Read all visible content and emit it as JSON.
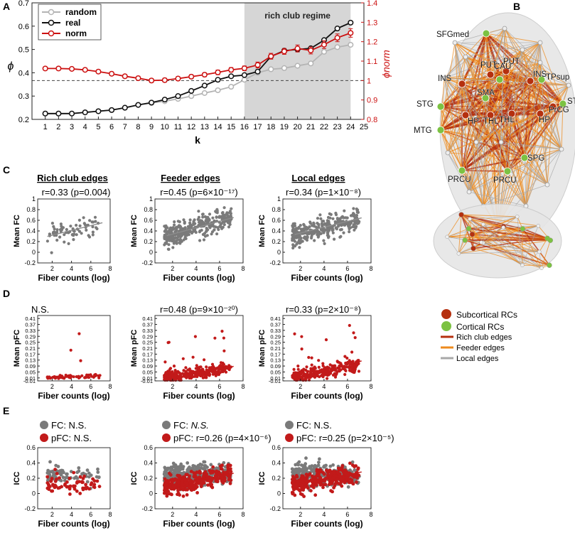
{
  "panels": {
    "a": "A",
    "b": "B",
    "c": "C",
    "d": "D",
    "e": "E"
  },
  "colors": {
    "random": "#b4b4b4",
    "real": "#111111",
    "norm": "#cc1111",
    "shade": "#d6d6d6",
    "dot_gray": "#7a7a7a",
    "dot_red": "#c21a1a",
    "line_gray": "#8c8c8c",
    "line_red": "#c21a1a",
    "subcortical": "#b5300f",
    "cortical": "#7cc242",
    "feeder": "#ee8b1e",
    "local": "#a8a8a8"
  },
  "legend_a": {
    "random": "random",
    "real": "real",
    "norm": "norm"
  },
  "shade_label": "rich club regime",
  "row_titles": {
    "c1": "Rich club edges",
    "c2": "Feeder edges",
    "c3": "Local edges"
  },
  "stats": {
    "c1": "r=0.33 (p=0.004)",
    "c2": "r=0.45 (p=6×10⁻¹⁷)",
    "c3": "r=0.34 (p=1×10⁻⁸)",
    "d1": "N.S.",
    "d2": "r=0.48 (p=9×10⁻²⁰)",
    "d3": "r=0.33 (p=2×10⁻⁸)",
    "e1_fc": "FC: N.S.",
    "e1_pfc": "pFC: N.S.",
    "e2_fc_prefix": "FC: ",
    "e2_fc_ns": "N.S.",
    "e2_pfc": "pFC: r=0.26 (p=4×10⁻⁶)",
    "e3_fc": "FC: N.S.",
    "e3_pfc": "pFC: r=0.25 (p=2×10⁻⁵)"
  },
  "legend_b": {
    "subcortical": "Subcortical RCs",
    "cortical": "Cortical RCs",
    "rich": "Rich club edges",
    "feeder": "Feeder edges",
    "local": "Local edges"
  },
  "brain_labels": [
    "SFGmed",
    "PUT",
    "CAU",
    "PUT",
    "INS",
    "INS",
    "TPsup",
    "SMA",
    "STG",
    "STG",
    "MTG",
    "HP",
    "THL",
    "THL",
    "HP",
    "PrCG",
    "SPG",
    "PRCU",
    "PRCU"
  ],
  "chart_data": [
    {
      "type": "line",
      "id": "A",
      "xlabel": "k",
      "ylabel": "ϕ",
      "ylabel_right": "ϕnorm",
      "xlim": [
        0,
        25
      ],
      "ylim": [
        0.2,
        0.7
      ],
      "ylim_right": [
        0.8,
        1.4
      ],
      "x_ticks": [
        1,
        2,
        3,
        4,
        5,
        6,
        7,
        8,
        9,
        10,
        11,
        12,
        13,
        14,
        15,
        16,
        17,
        18,
        19,
        20,
        21,
        22,
        23,
        24,
        25
      ],
      "y_ticks": [
        "0.2",
        "0.3",
        "0.4",
        "0.5",
        "0.6",
        "0.7"
      ],
      "y_ticks_right": [
        "0.8",
        "0.9",
        "1",
        "1.1",
        "1.2",
        "1.3",
        "1.4"
      ],
      "shaded_region": [
        16,
        24
      ],
      "reference_line_right": 1.0,
      "x": [
        1,
        2,
        3,
        4,
        5,
        6,
        7,
        8,
        9,
        10,
        11,
        12,
        13,
        14,
        15,
        16,
        17,
        18,
        19,
        20,
        21,
        22,
        23,
        24
      ],
      "series": [
        {
          "name": "random",
          "axis": "left",
          "values": [
            0.225,
            0.225,
            0.225,
            0.23,
            0.235,
            0.24,
            0.25,
            0.262,
            0.27,
            0.278,
            0.288,
            0.3,
            0.313,
            0.325,
            0.34,
            0.37,
            0.4,
            0.415,
            0.42,
            0.43,
            0.44,
            0.49,
            0.51,
            0.52
          ]
        },
        {
          "name": "real",
          "axis": "left",
          "values": [
            0.225,
            0.225,
            0.225,
            0.23,
            0.235,
            0.24,
            0.25,
            0.262,
            0.272,
            0.285,
            0.3,
            0.322,
            0.345,
            0.37,
            0.385,
            0.39,
            0.405,
            0.47,
            0.495,
            0.5,
            0.505,
            0.54,
            0.59,
            0.615
          ]
        },
        {
          "name": "norm",
          "axis": "right",
          "values": [
            1.062,
            1.062,
            1.06,
            1.055,
            1.046,
            1.035,
            1.022,
            1.012,
            1.0,
            1.002,
            1.01,
            1.02,
            1.03,
            1.042,
            1.055,
            1.063,
            1.08,
            1.125,
            1.15,
            1.165,
            1.155,
            1.185,
            1.22,
            1.245
          ],
          "errors": [
            0.008,
            0.008,
            0.008,
            0.008,
            0.008,
            0.009,
            0.009,
            0.01,
            0.01,
            0.01,
            0.01,
            0.01,
            0.01,
            0.012,
            0.012,
            0.012,
            0.015,
            0.015,
            0.015,
            0.018,
            0.018,
            0.02,
            0.02,
            0.022
          ]
        }
      ]
    },
    {
      "type": "scatter",
      "id": "C1",
      "title": "Rich club edges",
      "xlabel": "Fiber counts (log)",
      "ylabel": "Mean FC",
      "xlim": [
        0.5,
        8
      ],
      "ylim": [
        -0.2,
        1
      ],
      "x_ticks": [
        "2",
        "4",
        "6",
        "8"
      ],
      "y_ticks": [
        "-0.2",
        "0",
        "0.2",
        "0.4",
        "0.6",
        "0.8",
        "1"
      ],
      "n_points": 70,
      "fit": {
        "intercept": 0.23,
        "slope": 0.045
      },
      "series": [
        {
          "name": "FC",
          "n": 70,
          "x_range": [
            1.5,
            7.0
          ],
          "y_mean_slope": [
            0.23,
            0.045
          ],
          "spread": 0.15
        }
      ]
    },
    {
      "type": "scatter",
      "id": "C2",
      "title": "Feeder edges",
      "xlabel": "Fiber counts (log)",
      "ylabel": "Mean FC",
      "xlim": [
        0.5,
        8
      ],
      "ylim": [
        -0.2,
        1
      ],
      "x_ticks": [
        "2",
        "4",
        "6",
        "8"
      ],
      "y_ticks": [
        "-0.2",
        "0",
        "0.2",
        "0.4",
        "0.6",
        "0.8",
        "1"
      ],
      "n_points": 330,
      "fit": {
        "intercept": 0.22,
        "slope": 0.06
      },
      "series": [
        {
          "name": "FC",
          "n": 330,
          "x_range": [
            1.3,
            7.0
          ],
          "y_mean_slope": [
            0.22,
            0.06
          ],
          "spread": 0.15
        }
      ]
    },
    {
      "type": "scatter",
      "id": "C3",
      "title": "Local edges",
      "xlabel": "Fiber counts (log)",
      "ylabel": "Mean FC",
      "xlim": [
        0.5,
        8
      ],
      "ylim": [
        -0.2,
        1
      ],
      "x_ticks": [
        "2",
        "4",
        "6",
        "8"
      ],
      "y_ticks": [
        "-0.2",
        "0",
        "0.2",
        "0.4",
        "0.6",
        "0.8",
        "1"
      ],
      "n_points": 300,
      "fit": {
        "intercept": 0.25,
        "slope": 0.055
      },
      "series": [
        {
          "name": "FC",
          "n": 300,
          "x_range": [
            1.3,
            7.0
          ],
          "y_mean_slope": [
            0.25,
            0.055
          ],
          "spread": 0.15
        }
      ]
    },
    {
      "type": "scatter",
      "id": "D1",
      "xlabel": "Fiber counts (log)",
      "ylabel": "Mean pFC",
      "xlim": [
        0.5,
        8
      ],
      "ylim": [
        -0.01,
        0.43
      ],
      "x_ticks": [
        "2",
        "4",
        "6",
        "8"
      ],
      "y_ticks": [
        "-0.01",
        "0.01",
        "0.05",
        "0.09",
        "0.13",
        "0.17",
        "0.21",
        "0.25",
        "0.29",
        "0.33",
        "0.37",
        "0.41"
      ],
      "n_points": 70,
      "fit": null,
      "series": [
        {
          "name": "pFC",
          "n": 70,
          "x_range": [
            1.5,
            7.0
          ],
          "y_mean_slope": [
            0.01,
            0.002
          ],
          "spread": 0.008
        }
      ]
    },
    {
      "type": "scatter",
      "id": "D2",
      "xlabel": "Fiber counts (log)",
      "ylabel": "Mean pFC",
      "xlim": [
        0.5,
        8
      ],
      "ylim": [
        -0.01,
        0.43
      ],
      "x_ticks": [
        "2",
        "4",
        "6",
        "8"
      ],
      "y_ticks": [
        "-0.01",
        "0.01",
        "0.05",
        "0.09",
        "0.13",
        "0.17",
        "0.21",
        "0.25",
        "0.29",
        "0.33",
        "0.37",
        "0.41"
      ],
      "n_points": 330,
      "fit": {
        "intercept": -0.02,
        "slope": 0.015
      },
      "series": [
        {
          "name": "pFC",
          "n": 330,
          "x_range": [
            1.3,
            7.0
          ],
          "y_mean_slope": [
            -0.005,
            0.012
          ],
          "spread": 0.025
        }
      ]
    },
    {
      "type": "scatter",
      "id": "D3",
      "xlabel": "Fiber counts (log)",
      "ylabel": "Mean pFC",
      "xlim": [
        0.5,
        8
      ],
      "ylim": [
        -0.01,
        0.43
      ],
      "x_ticks": [
        "2",
        "4",
        "6",
        "8"
      ],
      "y_ticks": [
        "-0.01",
        "0.01",
        "0.05",
        "0.09",
        "0.13",
        "0.17",
        "0.21",
        "0.25",
        "0.29",
        "0.33",
        "0.37",
        "0.41"
      ],
      "n_points": 300,
      "fit": {
        "intercept": -0.02,
        "slope": 0.02
      },
      "series": [
        {
          "name": "pFC",
          "n": 300,
          "x_range": [
            1.3,
            7.0
          ],
          "y_mean_slope": [
            -0.005,
            0.015
          ],
          "spread": 0.03
        }
      ]
    },
    {
      "type": "scatter",
      "id": "E1",
      "xlabel": "Fiber counts (log)",
      "ylabel": "ICC",
      "xlim": [
        0.5,
        8
      ],
      "ylim": [
        -0.2,
        0.6
      ],
      "x_ticks": [
        "2",
        "4",
        "6",
        "8"
      ],
      "y_ticks": [
        "-0.2",
        "0",
        "0.2",
        "0.4",
        "0.6"
      ],
      "fit": null,
      "series": [
        {
          "name": "FC",
          "n": 70,
          "x_range": [
            1.5,
            7.0
          ],
          "y_mean_slope": [
            0.25,
            0.0
          ],
          "spread": 0.09
        },
        {
          "name": "pFC",
          "n": 70,
          "x_range": [
            1.5,
            7.0
          ],
          "y_mean_slope": [
            0.12,
            0.0
          ],
          "spread": 0.09
        }
      ]
    },
    {
      "type": "scatter",
      "id": "E2",
      "xlabel": "Fiber counts (log)",
      "ylabel": "ICC",
      "xlim": [
        0.5,
        8
      ],
      "ylim": [
        -0.2,
        0.6
      ],
      "x_ticks": [
        "2",
        "4",
        "6",
        "8"
      ],
      "y_ticks": [
        "-0.2",
        "0",
        "0.2",
        "0.4",
        "0.6"
      ],
      "fit": {
        "intercept": 0.05,
        "slope": 0.03
      },
      "series": [
        {
          "name": "FC",
          "n": 330,
          "x_range": [
            1.3,
            7.0
          ],
          "y_mean_slope": [
            0.25,
            0.0
          ],
          "spread": 0.1
        },
        {
          "name": "pFC",
          "n": 330,
          "x_range": [
            1.3,
            7.0
          ],
          "y_mean_slope": [
            0.05,
            0.03
          ],
          "spread": 0.09
        }
      ]
    },
    {
      "type": "scatter",
      "id": "E3",
      "xlabel": "Fiber counts (log)",
      "ylabel": "ICC",
      "xlim": [
        0.5,
        8
      ],
      "ylim": [
        -0.2,
        0.6
      ],
      "x_ticks": [
        "2",
        "4",
        "6",
        "8"
      ],
      "y_ticks": [
        "-0.2",
        "0",
        "0.2",
        "0.4",
        "0.6"
      ],
      "fit": {
        "intercept": 0.08,
        "slope": 0.028
      },
      "series": [
        {
          "name": "FC",
          "n": 300,
          "x_range": [
            1.3,
            7.0
          ],
          "y_mean_slope": [
            0.24,
            0.0
          ],
          "spread": 0.1
        },
        {
          "name": "pFC",
          "n": 300,
          "x_range": [
            1.3,
            7.0
          ],
          "y_mean_slope": [
            0.07,
            0.028
          ],
          "spread": 0.09
        }
      ]
    }
  ]
}
